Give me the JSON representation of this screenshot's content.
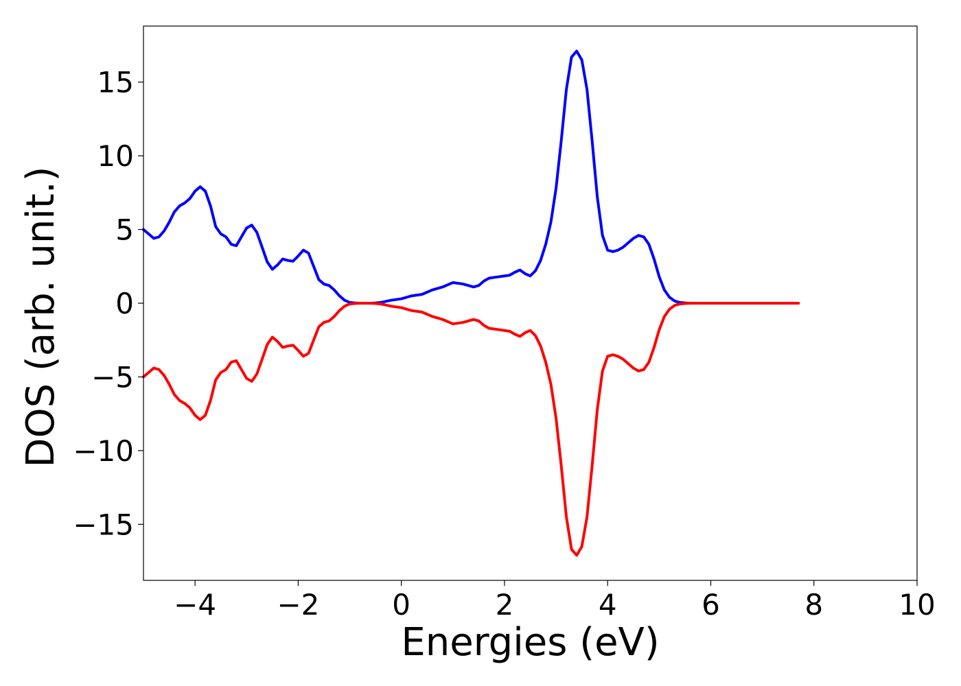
{
  "chart_data": {
    "type": "line",
    "xlabel": "Energies (eV)",
    "ylabel": "DOS (arb. unit.)",
    "xlim": [
      -5,
      10
    ],
    "ylim": [
      -18.8,
      18.8
    ],
    "xticks": [
      -4,
      -2,
      0,
      2,
      4,
      6,
      8,
      10
    ],
    "xtick_labels": [
      "−4",
      "−2",
      "0",
      "2",
      "4",
      "6",
      "8",
      "10"
    ],
    "yticks": [
      -15,
      -10,
      -5,
      0,
      5,
      10,
      15
    ],
    "ytick_labels": [
      "−15",
      "−10",
      "−5",
      "0",
      "5",
      "10",
      "15"
    ],
    "grid": false,
    "legend": "none",
    "series": [
      {
        "color": "#0000ff",
        "x": [
          -5.0,
          -4.9,
          -4.8,
          -4.7,
          -4.6,
          -4.5,
          -4.4,
          -4.3,
          -4.2,
          -4.1,
          -4.0,
          -3.9,
          -3.8,
          -3.7,
          -3.6,
          -3.5,
          -3.4,
          -3.3,
          -3.2,
          -3.1,
          -3.0,
          -2.9,
          -2.8,
          -2.7,
          -2.6,
          -2.5,
          -2.4,
          -2.3,
          -2.2,
          -2.1,
          -2.0,
          -1.9,
          -1.8,
          -1.7,
          -1.6,
          -1.5,
          -1.4,
          -1.3,
          -1.2,
          -1.1,
          -1.0,
          -0.9,
          -0.8,
          -0.7,
          -0.6,
          -0.5,
          -0.4,
          -0.2,
          0.0,
          0.2,
          0.4,
          0.6,
          0.8,
          1.0,
          1.2,
          1.4,
          1.5,
          1.6,
          1.7,
          1.8,
          1.9,
          2.0,
          2.1,
          2.2,
          2.3,
          2.4,
          2.5,
          2.6,
          2.7,
          2.8,
          2.9,
          3.0,
          3.1,
          3.2,
          3.3,
          3.4,
          3.5,
          3.6,
          3.7,
          3.8,
          3.9,
          4.0,
          4.1,
          4.2,
          4.3,
          4.4,
          4.5,
          4.6,
          4.7,
          4.8,
          4.9,
          5.0,
          5.1,
          5.2,
          5.3,
          5.4,
          5.5,
          5.6,
          5.7,
          5.8,
          5.9,
          6.0,
          6.2,
          6.5,
          7.0,
          7.5,
          7.7
        ],
        "y": [
          5.0,
          4.7,
          4.4,
          4.5,
          4.9,
          5.5,
          6.2,
          6.6,
          6.8,
          7.1,
          7.6,
          7.9,
          7.6,
          6.6,
          5.2,
          4.7,
          4.5,
          4.0,
          3.9,
          4.5,
          5.1,
          5.3,
          4.8,
          3.8,
          2.8,
          2.3,
          2.6,
          3.0,
          2.9,
          2.85,
          3.2,
          3.6,
          3.4,
          2.5,
          1.6,
          1.3,
          1.2,
          0.9,
          0.5,
          0.2,
          0.05,
          0.02,
          0.0,
          0.0,
          0.0,
          0.02,
          0.05,
          0.2,
          0.3,
          0.5,
          0.6,
          0.9,
          1.1,
          1.4,
          1.3,
          1.1,
          1.2,
          1.5,
          1.7,
          1.75,
          1.8,
          1.85,
          1.9,
          2.1,
          2.25,
          2.0,
          1.85,
          2.2,
          2.9,
          4.0,
          5.5,
          7.8,
          11.0,
          14.5,
          16.7,
          17.1,
          16.5,
          14.5,
          11.0,
          7.2,
          4.6,
          3.6,
          3.5,
          3.6,
          3.8,
          4.1,
          4.4,
          4.6,
          4.5,
          4.0,
          3.0,
          1.8,
          0.9,
          0.4,
          0.15,
          0.05,
          0.02,
          0.0,
          0.0,
          0.0,
          0.0,
          0.0,
          0.0,
          0.0,
          0.0,
          0.0,
          0.0
        ]
      },
      {
        "color": "#ff0000",
        "x": [
          -5.0,
          -4.9,
          -4.8,
          -4.7,
          -4.6,
          -4.5,
          -4.4,
          -4.3,
          -4.2,
          -4.1,
          -4.0,
          -3.9,
          -3.8,
          -3.7,
          -3.6,
          -3.5,
          -3.4,
          -3.3,
          -3.2,
          -3.1,
          -3.0,
          -2.9,
          -2.8,
          -2.7,
          -2.6,
          -2.5,
          -2.4,
          -2.3,
          -2.2,
          -2.1,
          -2.0,
          -1.9,
          -1.8,
          -1.7,
          -1.6,
          -1.5,
          -1.4,
          -1.3,
          -1.2,
          -1.1,
          -1.0,
          -0.9,
          -0.8,
          -0.7,
          -0.6,
          -0.5,
          -0.4,
          -0.2,
          0.0,
          0.2,
          0.4,
          0.6,
          0.8,
          1.0,
          1.2,
          1.4,
          1.5,
          1.6,
          1.7,
          1.8,
          1.9,
          2.0,
          2.1,
          2.2,
          2.3,
          2.4,
          2.5,
          2.6,
          2.7,
          2.8,
          2.9,
          3.0,
          3.1,
          3.2,
          3.3,
          3.4,
          3.5,
          3.6,
          3.7,
          3.8,
          3.9,
          4.0,
          4.1,
          4.2,
          4.3,
          4.4,
          4.5,
          4.6,
          4.7,
          4.8,
          4.9,
          5.0,
          5.1,
          5.2,
          5.3,
          5.4,
          5.5,
          5.6,
          5.7,
          5.8,
          5.9,
          6.0,
          6.2,
          6.5,
          7.0,
          7.5,
          7.7
        ],
        "y": [
          -5.0,
          -4.7,
          -4.4,
          -4.5,
          -4.9,
          -5.5,
          -6.2,
          -6.6,
          -6.8,
          -7.1,
          -7.6,
          -7.9,
          -7.6,
          -6.6,
          -5.2,
          -4.7,
          -4.5,
          -4.0,
          -3.9,
          -4.5,
          -5.1,
          -5.3,
          -4.8,
          -3.8,
          -2.8,
          -2.3,
          -2.6,
          -3.0,
          -2.9,
          -2.85,
          -3.2,
          -3.6,
          -3.4,
          -2.5,
          -1.6,
          -1.3,
          -1.2,
          -0.9,
          -0.5,
          -0.2,
          -0.05,
          -0.02,
          0.0,
          0.0,
          0.0,
          -0.02,
          -0.05,
          -0.2,
          -0.3,
          -0.5,
          -0.6,
          -0.9,
          -1.1,
          -1.4,
          -1.3,
          -1.1,
          -1.2,
          -1.5,
          -1.7,
          -1.75,
          -1.8,
          -1.85,
          -1.9,
          -2.1,
          -2.25,
          -2.0,
          -1.85,
          -2.2,
          -2.9,
          -4.0,
          -5.5,
          -7.8,
          -11.0,
          -14.5,
          -16.7,
          -17.1,
          -16.5,
          -14.5,
          -11.0,
          -7.2,
          -4.6,
          -3.6,
          -3.5,
          -3.6,
          -3.8,
          -4.1,
          -4.4,
          -4.6,
          -4.5,
          -4.0,
          -3.0,
          -1.8,
          -0.9,
          -0.4,
          -0.15,
          -0.05,
          -0.02,
          0.0,
          0.0,
          0.0,
          0.0,
          0.0,
          0.0,
          0.0,
          0.0,
          0.0,
          0.0
        ]
      }
    ]
  }
}
